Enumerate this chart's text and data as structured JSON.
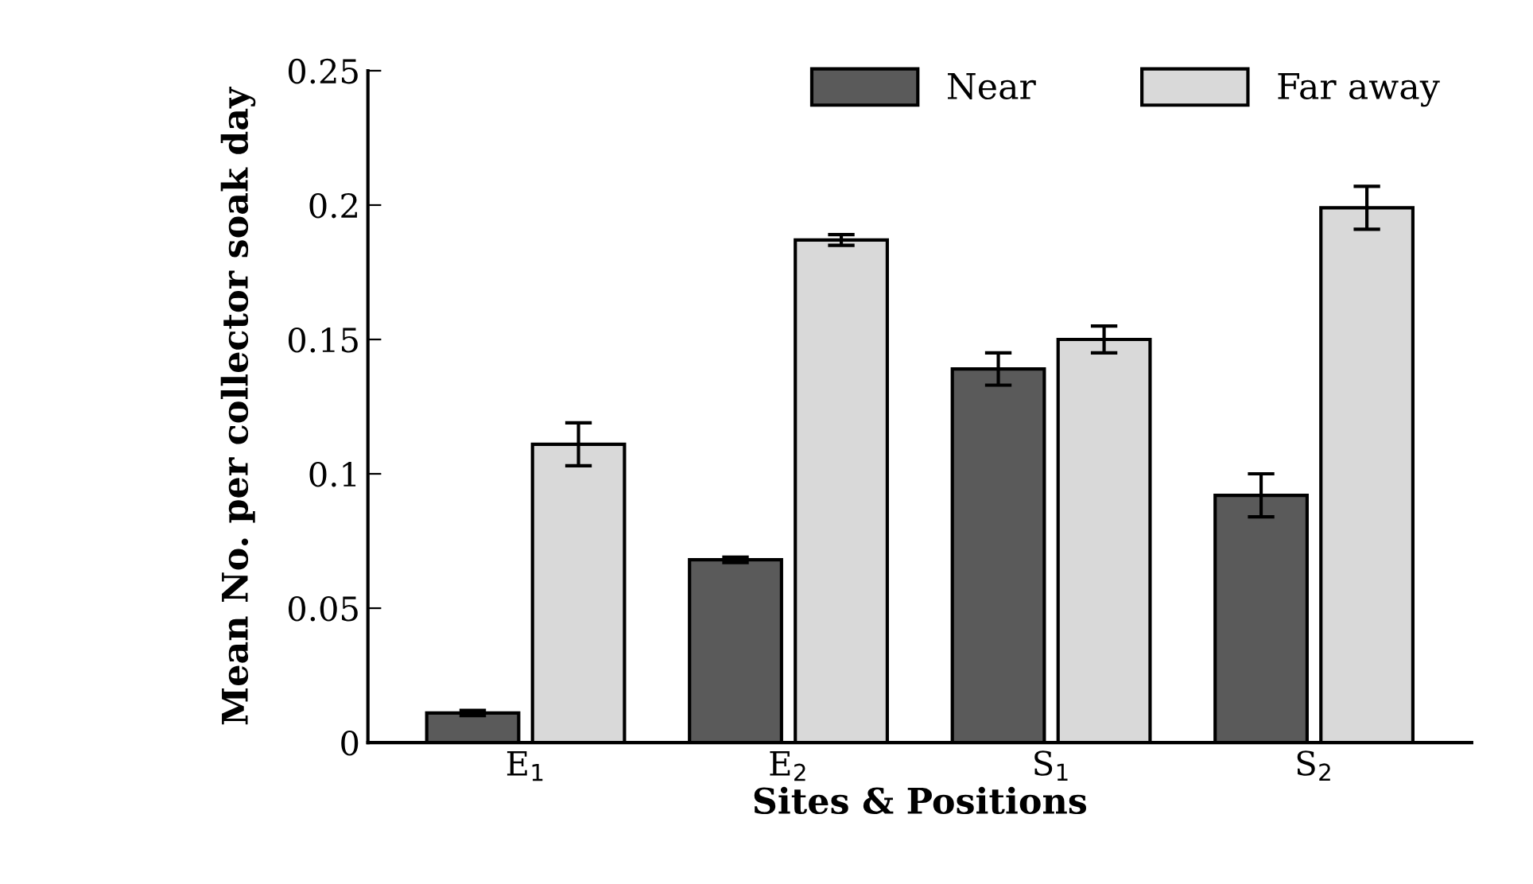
{
  "chart_data": {
    "type": "bar",
    "xlabel": "Sites & Positions",
    "ylabel": "Mean No. per collector soak day",
    "categories": [
      "E$_{1}$",
      "E$_{2}$",
      "S$_{1}$",
      "S$_{2}$"
    ],
    "series": [
      {
        "name": "Near",
        "color": "#5a5a5a",
        "values": [
          0.011,
          0.068,
          0.139,
          0.092
        ],
        "errors": [
          0.001,
          0.001,
          0.006,
          0.008
        ]
      },
      {
        "name": "Far away",
        "color": "#d9d9d9",
        "values": [
          0.111,
          0.187,
          0.15,
          0.199
        ],
        "errors": [
          0.008,
          0.002,
          0.005,
          0.008
        ]
      }
    ],
    "ylim": [
      0,
      0.25
    ],
    "yticks": [
      0,
      0.05,
      0.1,
      0.15,
      0.2,
      0.25
    ],
    "grid": false,
    "legend": "top right"
  }
}
